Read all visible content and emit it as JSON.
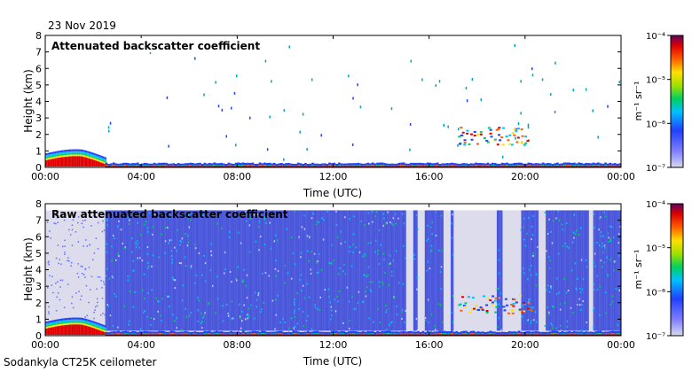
{
  "header": {
    "date": "23 Nov 2019"
  },
  "footer": {
    "instrument": "Sodankyla CT25K ceilometer"
  },
  "chart_data": [
    {
      "type": "heatmap",
      "title": "Attenuated backscatter coefficient",
      "xlabel": "Time (UTC)",
      "ylabel": "Height (km)",
      "xlim": [
        "00:00",
        "24:00"
      ],
      "ylim": [
        0,
        8
      ],
      "xticks": [
        "00:00",
        "04:00",
        "08:00",
        "12:00",
        "16:00",
        "20:00",
        "00:00"
      ],
      "yticks": [
        0,
        1,
        2,
        3,
        4,
        5,
        6,
        7,
        8
      ],
      "colorbar": {
        "unit": "m⁻¹ sr⁻¹",
        "scale": "log",
        "range": [
          1e-07,
          0.0001
        ],
        "tick_labels": [
          "10⁻⁴",
          "10⁻⁵",
          "10⁻⁶",
          "10⁻⁷"
        ]
      },
      "features": [
        {
          "name": "boundary layer aerosol",
          "time_range_h": [
            0,
            2.5
          ],
          "height_km": [
            0,
            1.0
          ]
        },
        {
          "name": "surface layer",
          "time_range_h": [
            0,
            24
          ],
          "height_km": [
            0,
            0.3
          ]
        },
        {
          "name": "cloud patches",
          "time_range_h": [
            17.2,
            20.3
          ],
          "height_km": [
            1.4,
            2.5
          ]
        },
        {
          "name": "sparse returns aloft",
          "time_range_h": [
            2.5,
            24
          ],
          "height_km": [
            0.5,
            7.5
          ]
        }
      ]
    },
    {
      "type": "heatmap",
      "title": "Raw attenuated backscatter coefficient",
      "xlabel": "Time (UTC)",
      "ylabel": "Height (km)",
      "xlim": [
        "00:00",
        "24:00"
      ],
      "ylim": [
        0,
        8
      ],
      "xticks": [
        "00:00",
        "04:00",
        "08:00",
        "12:00",
        "16:00",
        "20:00",
        "00:00"
      ],
      "yticks": [
        0,
        1,
        2,
        3,
        4,
        5,
        6,
        7,
        8
      ],
      "colorbar": {
        "unit": "m⁻¹ sr⁻¹",
        "scale": "log",
        "range": [
          1e-07,
          0.0001
        ],
        "tick_labels": [
          "10⁻⁴",
          "10⁻⁵",
          "10⁻⁶",
          "10⁻⁷"
        ]
      },
      "features": [
        {
          "name": "boundary layer aerosol",
          "time_range_h": [
            0,
            2.5
          ],
          "height_km": [
            0,
            1.0
          ]
        },
        {
          "name": "surface layer",
          "time_range_h": [
            0,
            24
          ],
          "height_km": [
            0,
            0.3
          ]
        },
        {
          "name": "cloud patches",
          "time_range_h": [
            17.2,
            20.3
          ],
          "height_km": [
            1.4,
            2.5
          ]
        },
        {
          "name": "noise",
          "time_range_h": [
            2.5,
            24
          ],
          "height_km": [
            0.3,
            7.6
          ]
        }
      ]
    }
  ]
}
